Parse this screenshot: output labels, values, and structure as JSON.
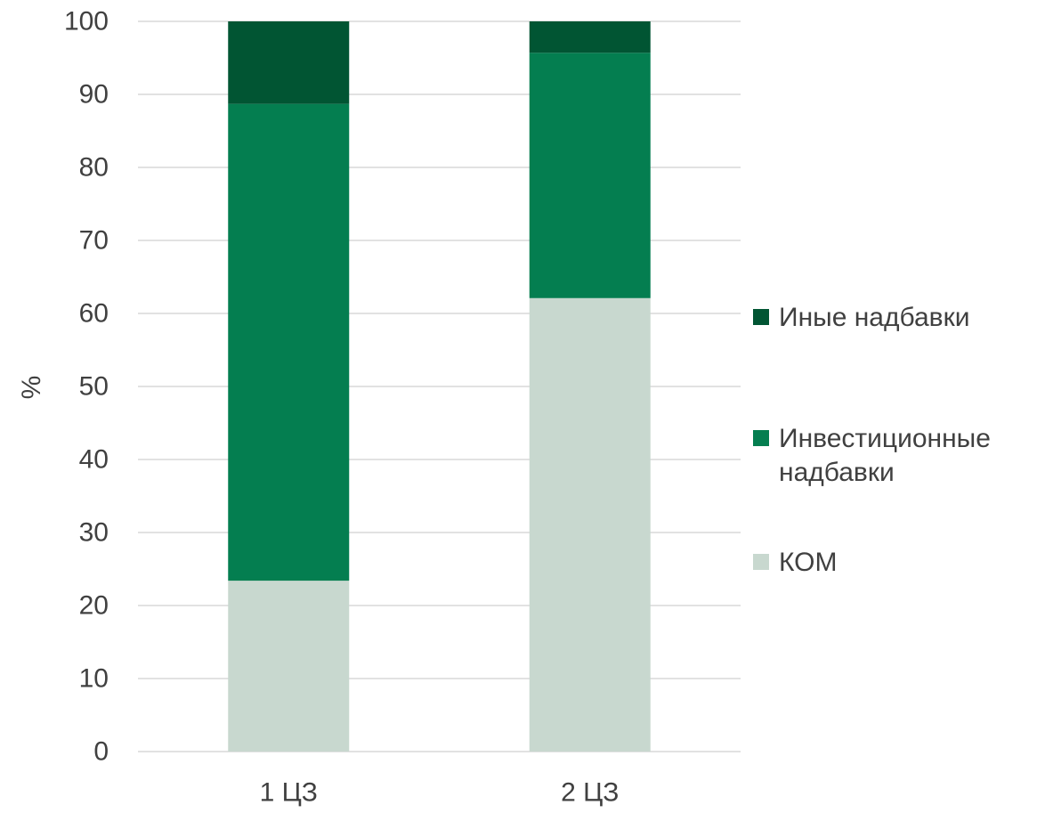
{
  "chart_data": {
    "type": "bar",
    "stacked": true,
    "categories": [
      "1 ЦЗ",
      "2 ЦЗ"
    ],
    "series": [
      {
        "name": "КОМ",
        "values": [
          23.4,
          62.1
        ],
        "color": "#c8d8cf"
      },
      {
        "name": "Инвестиционные надбавки",
        "values": [
          65.3,
          33.6
        ],
        "color": "#047e50"
      },
      {
        "name": "Иные надбавки",
        "values": [
          11.3,
          4.3
        ],
        "color": "#015533"
      }
    ],
    "legend_order": [
      "Иные надбавки",
      "Инвестиционные надбавки",
      "КОМ"
    ],
    "legend_labels": {
      "Иные надбавки": [
        "Иные надбавки"
      ],
      "Инвестиционные надбавки": [
        "Инвестиционные",
        "надбавки"
      ],
      "КОМ": [
        "КОМ"
      ]
    },
    "title": "",
    "xlabel": "",
    "ylabel": "%",
    "ylim": [
      0,
      100
    ],
    "yticks": [
      0,
      10,
      20,
      30,
      40,
      50,
      60,
      70,
      80,
      90,
      100
    ],
    "grid": true,
    "gridline_color": "#d9d9d9",
    "legend_position": "right"
  }
}
